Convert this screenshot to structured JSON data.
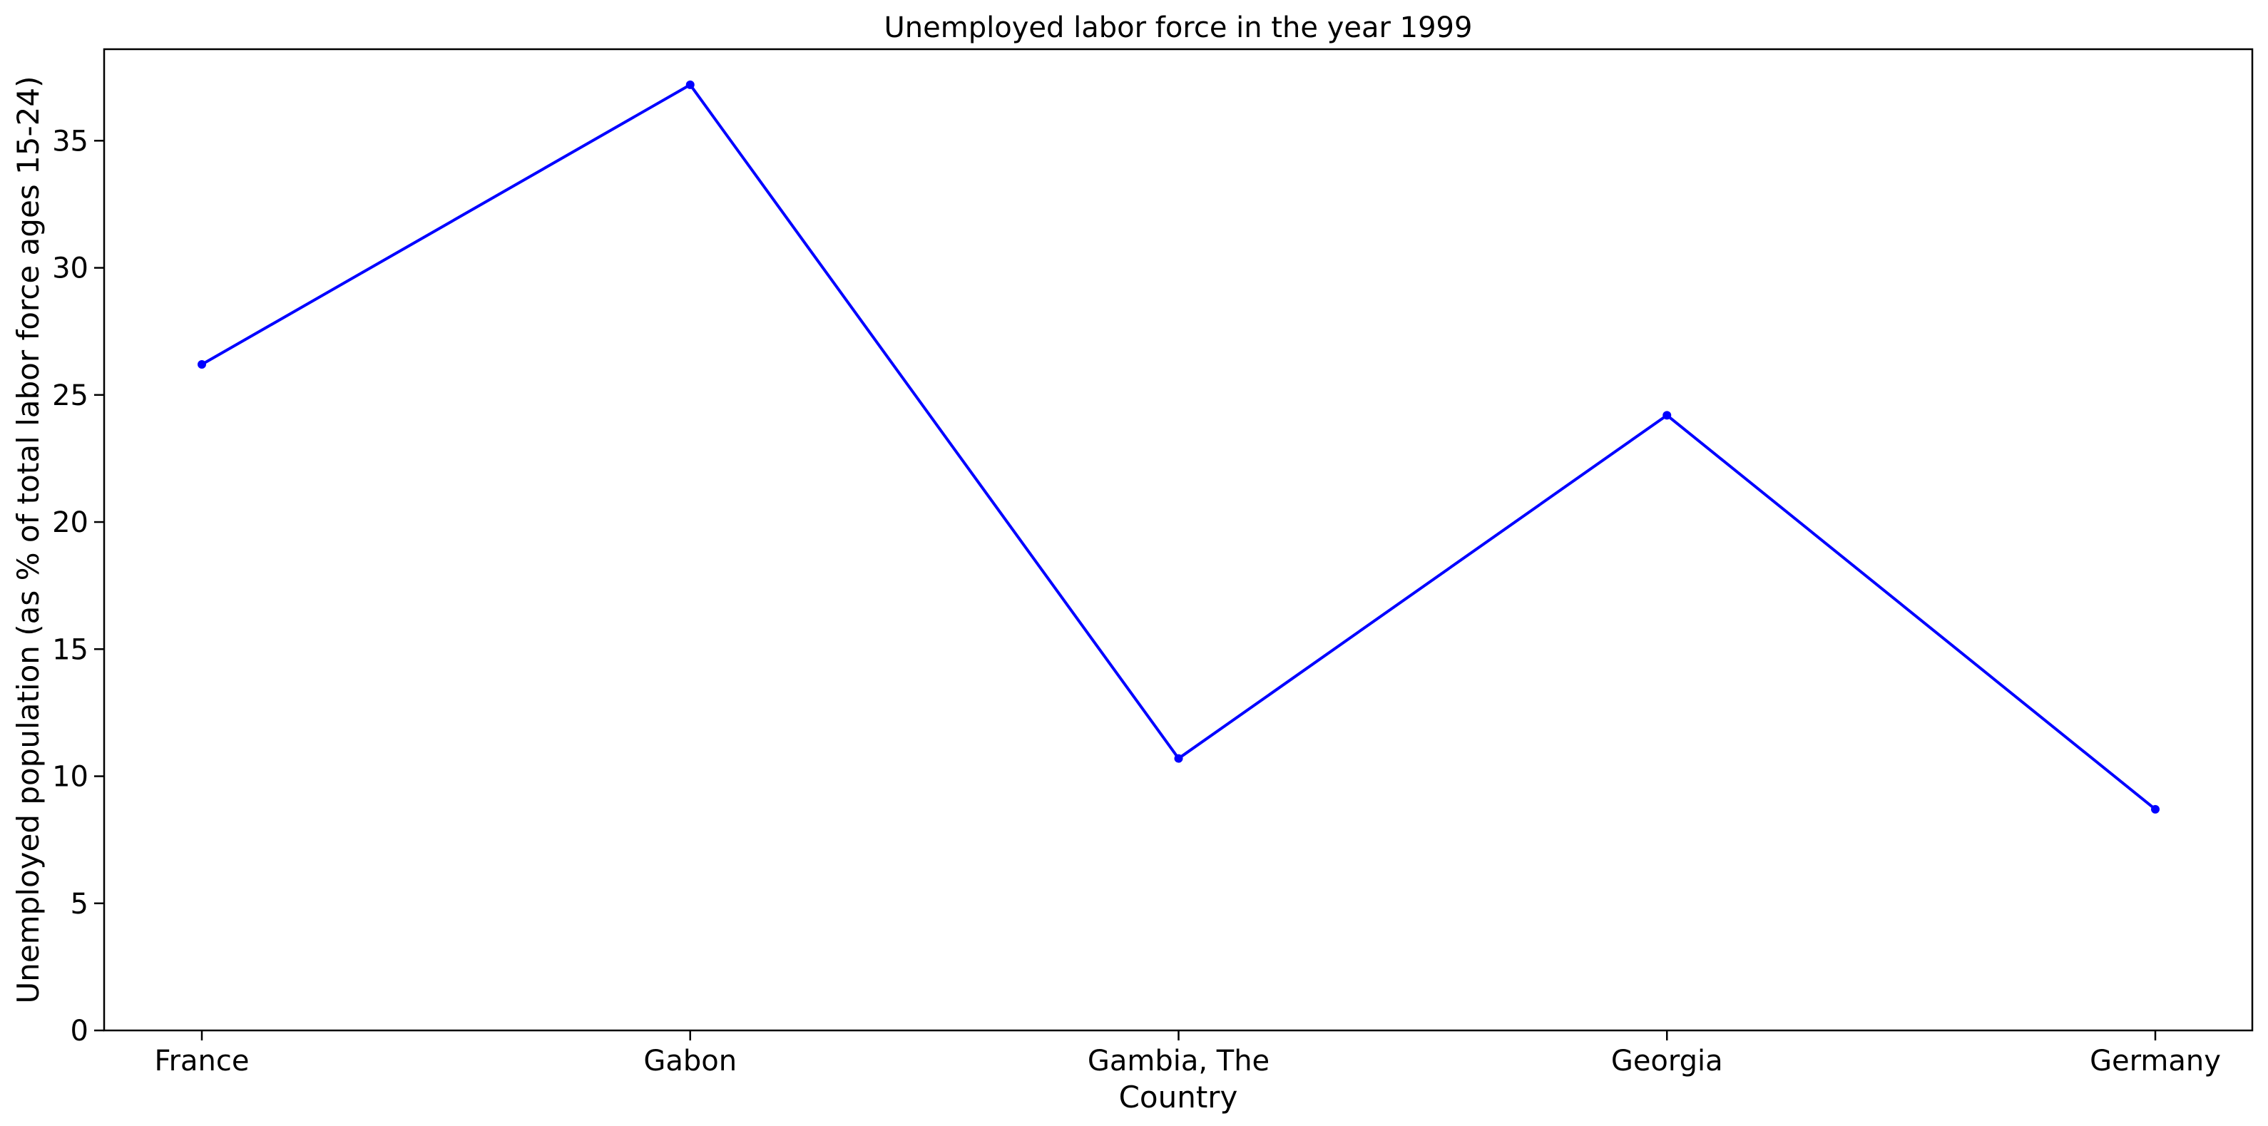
{
  "chart_data": {
    "type": "line",
    "title": "Unemployed labor force in the year 1999",
    "xlabel": "Country",
    "ylabel": "Unemployed population (as % of total labor force ages 15-24)",
    "categories": [
      "France",
      "Gabon",
      "Gambia, The",
      "Georgia",
      "Germany"
    ],
    "series": [
      {
        "values": [
          26.2,
          37.2,
          10.7,
          24.2,
          8.7
        ],
        "color": "#0000ff"
      }
    ],
    "ylim": [
      0,
      38.6
    ],
    "yticks": [
      0,
      5,
      10,
      15,
      20,
      25,
      30,
      35
    ],
    "grid": false,
    "legend": "none"
  }
}
